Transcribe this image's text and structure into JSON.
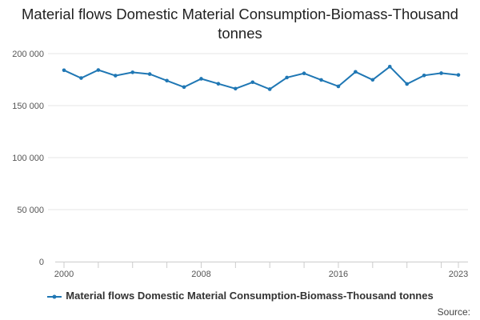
{
  "chart_data": {
    "type": "line",
    "title": "Material flows Domestic Material Consumption-Biomass-Thousand tonnes",
    "xlabel": "",
    "ylabel": "",
    "x": [
      2000,
      2001,
      2002,
      2003,
      2004,
      2005,
      2006,
      2007,
      2008,
      2009,
      2010,
      2011,
      2012,
      2013,
      2014,
      2015,
      2016,
      2017,
      2018,
      2019,
      2020,
      2021,
      2022,
      2023
    ],
    "series": [
      {
        "name": "Material flows Domestic Material Consumption-Biomass-Thousand tonnes",
        "color": "#1f77b4",
        "values": [
          184000,
          176500,
          184200,
          178800,
          182000,
          180300,
          174000,
          167800,
          175800,
          171000,
          166300,
          172500,
          165800,
          177000,
          181000,
          174700,
          168500,
          182500,
          174800,
          187500,
          170800,
          179000,
          181200,
          179500
        ]
      }
    ],
    "ylim": [
      0,
      200000
    ],
    "yticks": [
      0,
      50000,
      100000,
      150000,
      200000
    ],
    "ytick_labels": [
      "0",
      "50 000",
      "100 000",
      "150 000",
      "200 000"
    ],
    "xtick_labels": [
      {
        "year": 2000,
        "label": "2000"
      },
      {
        "year": 2008,
        "label": "2008"
      },
      {
        "year": 2016,
        "label": "2016"
      },
      {
        "year": 2023,
        "label": "2023"
      }
    ],
    "grid": true,
    "legend": "bottom"
  },
  "source_label": "Source:"
}
